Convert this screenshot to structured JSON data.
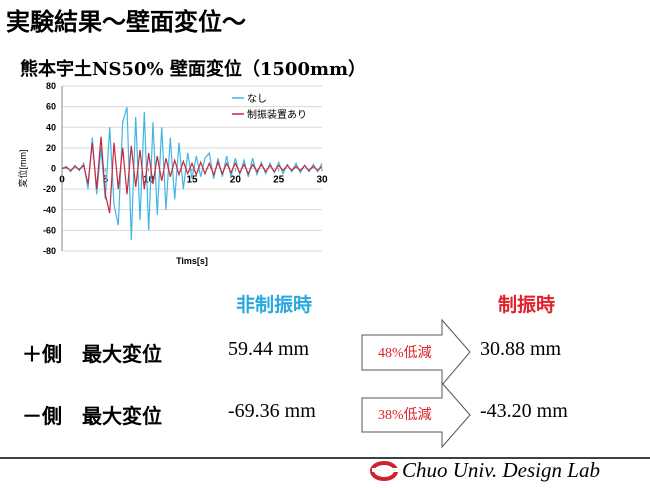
{
  "slide": {
    "title": "実験結果～壁面変位～",
    "footer": "Chuo Univ. Design Lab"
  },
  "chart_data": {
    "type": "line",
    "title": "熊本宇土NS50% 壁面変位（1500mm）",
    "x_label": "Tims[s]",
    "y_label": "変位[mm]",
    "x": [
      0,
      0.5,
      1,
      1.5,
      2,
      2.5,
      3,
      3.5,
      4,
      4.5,
      5,
      5.5,
      6,
      6.5,
      7,
      7.5,
      8,
      8.5,
      9,
      9.5,
      10,
      10.5,
      11,
      11.5,
      12,
      12.5,
      13,
      13.5,
      14,
      14.5,
      15,
      15.5,
      16,
      16.5,
      17,
      17.5,
      18,
      18.5,
      19,
      19.5,
      20,
      20.5,
      21,
      21.5,
      22,
      22.5,
      23,
      23.5,
      24,
      24.5,
      25,
      25.5,
      26,
      26.5,
      27,
      27.5,
      28,
      28.5,
      29,
      29.5,
      30
    ],
    "series": [
      {
        "name": "なし",
        "color": "#41b6e6",
        "values": [
          0,
          2,
          -3,
          3,
          -2,
          5,
          -20,
          30,
          -25,
          20,
          -30,
          40,
          -35,
          -55,
          45,
          59.44,
          -69.36,
          50,
          -50,
          55,
          -60,
          45,
          -45,
          40,
          -40,
          30,
          -30,
          25,
          -20,
          15,
          -10,
          12,
          -8,
          10,
          15,
          -10,
          10,
          -8,
          12,
          -8,
          10,
          -6,
          8,
          -8,
          10,
          -6,
          6,
          -5,
          5,
          -4,
          6,
          -5,
          4,
          -3,
          5,
          -4,
          3,
          -3,
          4,
          -3,
          5
        ]
      },
      {
        "name": "制振装置あり",
        "color": "#c8283c",
        "values": [
          0,
          1,
          -2,
          2,
          -1,
          3,
          -15,
          25,
          -20,
          30.88,
          -25,
          -43.2,
          25,
          -20,
          20,
          -25,
          22,
          -18,
          18,
          -20,
          15,
          -15,
          12,
          -12,
          10,
          -8,
          8,
          -6,
          7,
          -5,
          5,
          -6,
          6,
          -5,
          5,
          -6,
          6,
          -5,
          5,
          -4,
          5,
          -4,
          4,
          -5,
          4,
          -3,
          4,
          -3,
          3,
          -3,
          3,
          -2,
          3,
          -2,
          2,
          -2,
          3,
          -2,
          2,
          -2,
          2
        ]
      }
    ],
    "xlim": [
      0,
      30
    ],
    "xticks": [
      0,
      5,
      10,
      15,
      20,
      25,
      30
    ],
    "ylim": [
      -80,
      80
    ],
    "yticks": [
      -80,
      -60,
      -40,
      -20,
      0,
      20,
      40,
      60,
      80
    ],
    "grid": true,
    "legend": "upper right"
  },
  "comparison": {
    "headers": [
      "非制振時",
      "制振時"
    ],
    "rows": [
      {
        "label": "＋側　最大変位",
        "before": "59.44 mm",
        "reduction": "48%低減",
        "after": "30.88 mm"
      },
      {
        "label": "－側　最大変位",
        "before": "-69.36 mm",
        "reduction": "38%低減",
        "after": "-43.20 mm"
      }
    ]
  }
}
